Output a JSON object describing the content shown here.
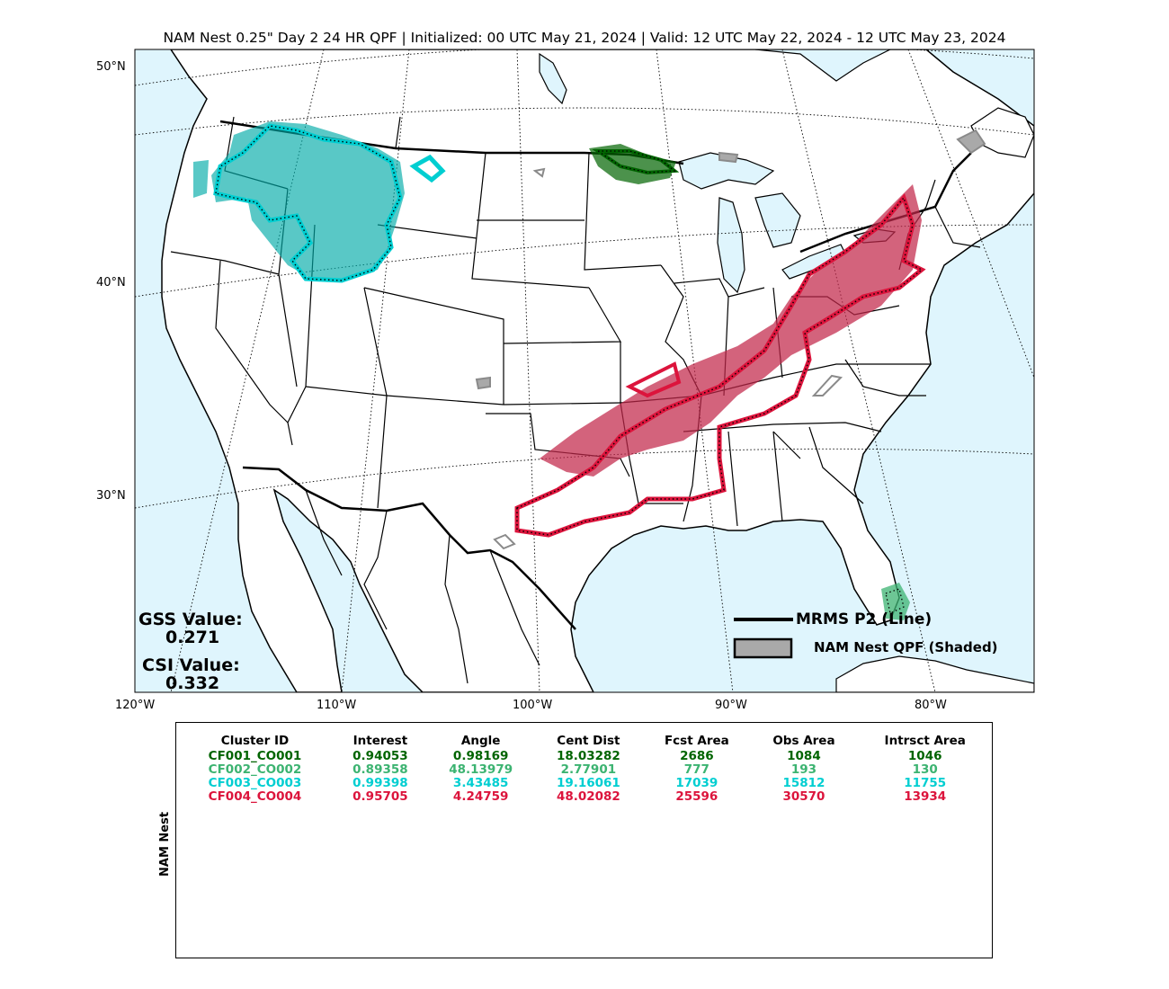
{
  "title": "NAM Nest 0.25\" Day 2 24 HR QPF | Initialized: 00 UTC May 21, 2024 | Valid: 12 UTC May 22, 2024 - 12 UTC May 23, 2024",
  "map": {
    "lat_labels": [
      "50°N",
      "40°N",
      "30°N"
    ],
    "lon_labels": [
      "120°W",
      "110°W",
      "100°W",
      "90°W",
      "80°W"
    ],
    "colors": {
      "ocean": "#dff5fd",
      "land": "#ffffff",
      "cluster1": "#006400",
      "cluster2": "#3cb371",
      "cluster3": "#00ced1",
      "cluster4": "#dc143c",
      "unmatched": "#a9a9a9"
    }
  },
  "stats": {
    "gss_label": "GSS Value:",
    "gss_value": "0.271",
    "csi_label": "CSI Value:",
    "csi_value": "0.332"
  },
  "legend": {
    "line_label": "MRMS P2 (Line)",
    "shaded_label": "NAM Nest QPF (Shaded)"
  },
  "table": {
    "side_label": "NAM Nest",
    "headers": [
      "Cluster ID",
      "Interest",
      "Angle",
      "Cent Dist",
      "Fcst Area",
      "Obs Area",
      "Intrsct Area"
    ],
    "rows": [
      {
        "color": "#006400",
        "cells": [
          "CF001_CO001",
          "0.94053",
          "0.98169",
          "18.03282",
          "2686",
          "1084",
          "1046"
        ]
      },
      {
        "color": "#3cb371",
        "cells": [
          "CF002_CO002",
          "0.89358",
          "48.13979",
          "2.77901",
          "777",
          "193",
          "130"
        ]
      },
      {
        "color": "#00ced1",
        "cells": [
          "CF003_CO003",
          "0.99398",
          "3.43485",
          "19.16061",
          "17039",
          "15812",
          "11755"
        ]
      },
      {
        "color": "#dc143c",
        "cells": [
          "CF004_CO004",
          "0.95705",
          "4.24759",
          "48.02082",
          "25596",
          "30570",
          "13934"
        ]
      }
    ]
  }
}
